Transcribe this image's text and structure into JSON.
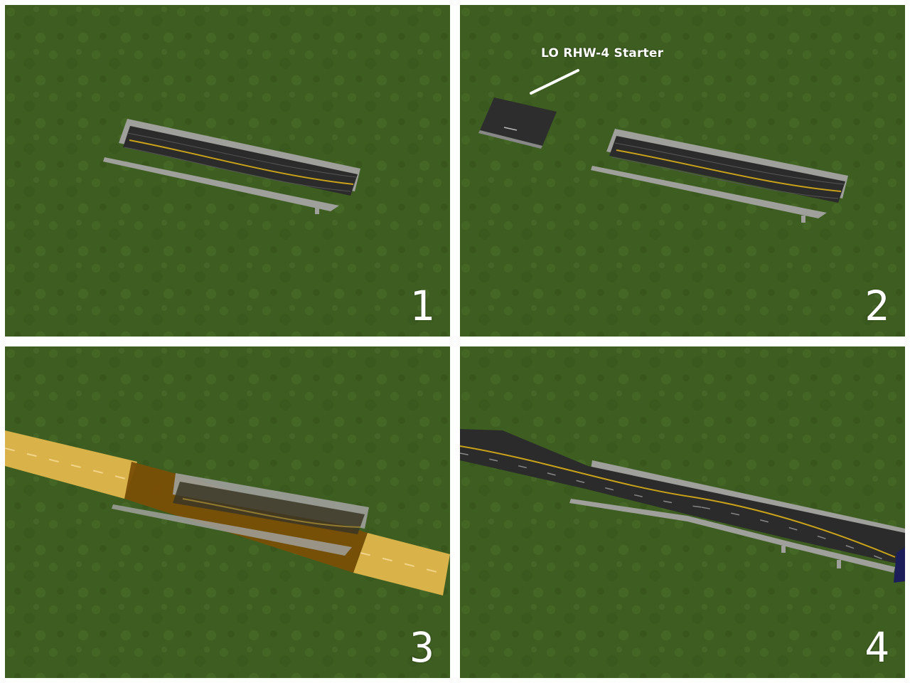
{
  "panels": [
    {
      "number": "1"
    },
    {
      "number": "2",
      "callout": "LO RHW-4 Starter"
    },
    {
      "number": "3"
    },
    {
      "number": "4"
    }
  ],
  "colors": {
    "grass": "#3f5f22",
    "asphalt": "#2a2b2a",
    "barrier": "#a9aaa6",
    "centerline": "#c9a21a",
    "draggable_highlight": "#d9b24a",
    "terrain_highlight": "#7a4f06"
  }
}
